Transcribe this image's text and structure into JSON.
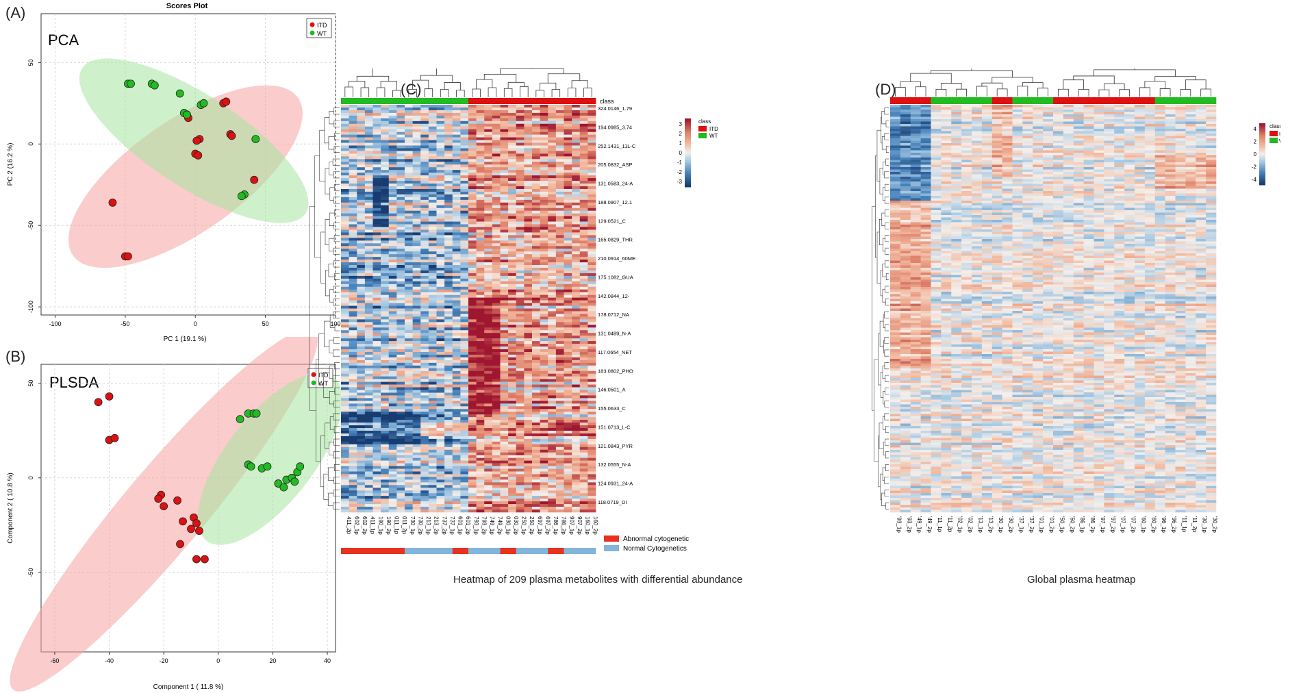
{
  "panels": {
    "A": {
      "label": "(A)",
      "method": "PCA",
      "title": "Scores Plot"
    },
    "B": {
      "label": "(B)",
      "method": "PLSDA"
    },
    "C": {
      "label": "(C)",
      "caption": "Heatmap of 209 plasma metabolites with differential abundance"
    },
    "D": {
      "label": "(D)",
      "caption": "Global plasma heatmap"
    }
  },
  "colors": {
    "itd": "#dd1111",
    "wt": "#22bb22",
    "itd_fill": "#f6a3a3",
    "wt_fill": "#a6e6a0",
    "overlap_fill": "#b6a886",
    "abnormal": "#e8321e",
    "normal": "#82b4dc",
    "heat_hi": "#9e1630",
    "heat_mid": "#f5f1ee",
    "heat_lo": "#183b70"
  },
  "chart_data": [
    {
      "id": "pca",
      "type": "scatter",
      "title": "Scores Plot",
      "xlabel": "PC 1 (19.1 %)",
      "ylabel": "PC 2 (16.2 %)",
      "xlim": [
        -110,
        100
      ],
      "ylim": [
        -105,
        80
      ],
      "xticks": [
        -100,
        -50,
        0,
        50,
        100
      ],
      "yticks": [
        50,
        0,
        -50,
        -100
      ],
      "legend": [
        "ITD",
        "WT"
      ],
      "legend_position": "top-right",
      "grid": true,
      "series": [
        {
          "name": "ITD",
          "points": [
            [
              -6,
              18
            ],
            [
              -5,
              16
            ],
            [
              3,
              3
            ],
            [
              1,
              2
            ],
            [
              20,
              25
            ],
            [
              22,
              26
            ],
            [
              25,
              6
            ],
            [
              26,
              5
            ],
            [
              0,
              -6
            ],
            [
              2,
              -7
            ],
            [
              42,
              -22
            ],
            [
              -59,
              -36
            ],
            [
              -50,
              -69
            ],
            [
              -48,
              -69
            ]
          ]
        },
        {
          "name": "WT",
          "points": [
            [
              -48,
              37
            ],
            [
              -46,
              37
            ],
            [
              -31,
              37
            ],
            [
              -29,
              36
            ],
            [
              -11,
              31
            ],
            [
              -8,
              19
            ],
            [
              -6,
              18
            ],
            [
              4,
              24
            ],
            [
              6,
              25
            ],
            [
              43,
              3
            ],
            [
              35,
              -31
            ],
            [
              33,
              -32
            ]
          ]
        }
      ],
      "ellipses": [
        {
          "name": "ITD",
          "cx": -7,
          "cy": -20,
          "rx": 98,
          "ry": 40,
          "angle_deg": 35
        },
        {
          "name": "WT",
          "cx": -1,
          "cy": 2,
          "rx": 95,
          "ry": 33,
          "angle_deg": -33
        }
      ]
    },
    {
      "id": "plsda",
      "type": "scatter",
      "xlabel": "Component 1 ( 11.8 %)",
      "ylabel": "Component 2 ( 10.8 %)",
      "xlim": [
        -65,
        43
      ],
      "ylim": [
        -92,
        60
      ],
      "xticks": [
        -60,
        -40,
        -20,
        0,
        20,
        40
      ],
      "yticks": [
        50,
        0,
        -50
      ],
      "legend": [
        "ITD",
        "WT"
      ],
      "legend_position": "top-right",
      "grid": true,
      "series": [
        {
          "name": "ITD",
          "points": [
            [
              -44,
              40
            ],
            [
              -40,
              43
            ],
            [
              -40,
              20
            ],
            [
              -38,
              21
            ],
            [
              -21,
              -9
            ],
            [
              -22,
              -11
            ],
            [
              -20,
              -15
            ],
            [
              -15,
              -12
            ],
            [
              -13,
              -23
            ],
            [
              -9,
              -21
            ],
            [
              -10,
              -27
            ],
            [
              -8,
              -24
            ],
            [
              -7,
              -28
            ],
            [
              -14,
              -35
            ],
            [
              -8,
              -43
            ],
            [
              -5,
              -43
            ]
          ]
        },
        {
          "name": "WT",
          "points": [
            [
              8,
              31
            ],
            [
              11,
              34
            ],
            [
              13,
              34
            ],
            [
              14,
              34
            ],
            [
              11,
              7
            ],
            [
              12,
              6
            ],
            [
              16,
              5
            ],
            [
              18,
              6
            ],
            [
              22,
              -3
            ],
            [
              24,
              -5
            ],
            [
              25,
              -1
            ],
            [
              27,
              0
            ],
            [
              28,
              -2
            ],
            [
              29,
              3
            ],
            [
              30,
              6
            ]
          ]
        }
      ],
      "ellipses": [
        {
          "name": "ITD",
          "cx": -20,
          "cy": -17,
          "rx": 86,
          "ry": 15,
          "angle_deg": 50
        },
        {
          "name": "WT",
          "cx": 19,
          "cy": 10,
          "rx": 38,
          "ry": 16,
          "angle_deg": 52
        }
      ]
    },
    {
      "id": "heatmap_c",
      "type": "heatmap",
      "class_label": "class",
      "class_legend": [
        "ITD",
        "WT"
      ],
      "colorbar_ticks": [
        "3",
        "2",
        "1",
        "0",
        "-1",
        "-2",
        "-3"
      ],
      "row_labels_visible": [
        "324.0146_1.79",
        "194.0985_3.74",
        "252.1431_11L-C",
        "205.0832_ASP",
        "131.0583_24-A",
        "188.0907_12.1",
        "129.0521_C",
        "165.0829_THR",
        "210.0914_60ME",
        "175.1082_GUA",
        "142.0844_12-",
        "178.0712_NA",
        "131.0489_N-A",
        "117.0654_NET",
        "183.0802_PHO",
        "146.0501_A",
        "155.0633_C",
        "151.0713_L-C",
        "121.0843_PYR",
        "132.0555_N-A",
        "124.0931_24-A",
        "118.0719_DI"
      ],
      "sample_labels": [
        "411_2p",
        "602_1p",
        "602_2p",
        "411_1p",
        "190_1p",
        "190_2p",
        "011_1p",
        "011_2p",
        "730_1p",
        "730_2p",
        "213_1p",
        "213_2p",
        "737_2p",
        "737_1p",
        "601_1p",
        "601_2p",
        "793_1p",
        "793_2p",
        "749_1p",
        "749_2p",
        "030_1p",
        "030_2p",
        "250_1p",
        "250_2p",
        "697_1p",
        "697_2p",
        "786_1p",
        "786_2p",
        "907_1p",
        "907_2p",
        "160_1p",
        "160_2p"
      ],
      "sample_class": [
        "WT",
        "WT",
        "WT",
        "WT",
        "WT",
        "WT",
        "WT",
        "WT",
        "WT",
        "WT",
        "WT",
        "WT",
        "WT",
        "WT",
        "WT",
        "WT",
        "ITD",
        "ITD",
        "ITD",
        "ITD",
        "ITD",
        "ITD",
        "ITD",
        "ITD",
        "ITD",
        "ITD",
        "ITD",
        "ITD",
        "ITD",
        "ITD",
        "ITD",
        "ITD"
      ],
      "cytogenetics": [
        "abnormal",
        "abnormal",
        "abnormal",
        "abnormal",
        "abnormal",
        "abnormal",
        "abnormal",
        "abnormal",
        "normal",
        "normal",
        "normal",
        "normal",
        "normal",
        "normal",
        "abnormal",
        "abnormal",
        "normal",
        "normal",
        "normal",
        "normal",
        "abnormal",
        "abnormal",
        "normal",
        "normal",
        "normal",
        "normal",
        "abnormal",
        "abnormal",
        "normal",
        "normal",
        "normal",
        "normal"
      ],
      "cytogenetics_legend": [
        "Abnormal cytogenetic",
        "Normal Cytogenetics"
      ],
      "title": "Heatmap of 209 plasma metabolites with differential abundance"
    },
    {
      "id": "heatmap_d",
      "type": "heatmap",
      "class_label": "class",
      "class_legend": [
        "ITD",
        "WT"
      ],
      "colorbar_ticks": [
        "4",
        "2",
        "0",
        "-2",
        "-4"
      ],
      "sample_labels": [
        "'93_1p",
        "'93_2p",
        "'49_1p",
        "'49_2p",
        "'11_1p",
        "'11_2p",
        "'02_1p",
        "'02_2p",
        "'13_1p",
        "'13_2p",
        "'30_1p",
        "'30_2p",
        "'37_1p",
        "'37_2p",
        "'01_1p",
        "'01_2p",
        "'50_1p",
        "'50_2p",
        "'86_1p",
        "'86_2p",
        "'97_1p",
        "'97_2p",
        "'07_1p",
        "'07_2p",
        "'60_1p",
        "'60_2p",
        "'96_1p",
        "'96_2p",
        "'11_1p",
        "'11_2p",
        "'30_1p",
        "'30_2p"
      ],
      "sample_class": [
        "ITD",
        "ITD",
        "ITD",
        "ITD",
        "WT",
        "WT",
        "WT",
        "WT",
        "WT",
        "WT",
        "ITD",
        "ITD",
        "WT",
        "WT",
        "WT",
        "WT",
        "ITD",
        "ITD",
        "ITD",
        "ITD",
        "ITD",
        "ITD",
        "ITD",
        "ITD",
        "ITD",
        "ITD",
        "WT",
        "WT",
        "WT",
        "WT",
        "WT",
        "WT"
      ],
      "title": "Global plasma heatmap"
    }
  ]
}
